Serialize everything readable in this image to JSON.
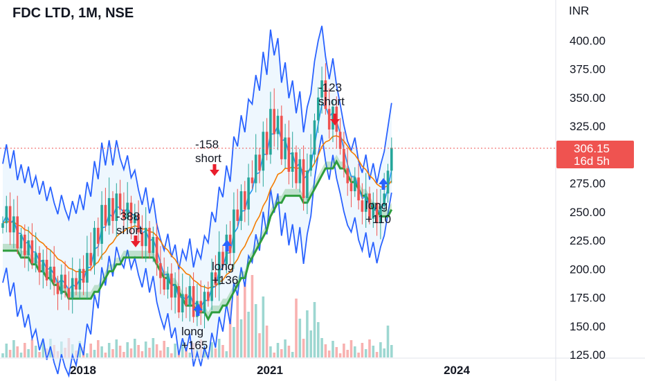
{
  "chart": {
    "title": "FDC LTD, 1M, NSE",
    "currency": "INR",
    "last_price": "306.15",
    "countdown": "16d 5h",
    "colors": {
      "up": "#26a69a",
      "down": "#ef5350",
      "bb_line": "#2962ff",
      "bb_fill": "#e3f2fd",
      "ema": "#f57c00",
      "fast_ma": "#2196f3",
      "cloud_up": "#2e9d3d",
      "cloud_down": "#e53935",
      "buy_arrow": "#2962ff",
      "sell_arrow": "#e91e2c",
      "price_tag": "#ef5350"
    }
  },
  "chart_data": {
    "type": "candlestick",
    "x_axis": {
      "tick_labels": [
        "2018",
        "2021",
        "2024"
      ]
    },
    "y_axis": {
      "ticks": [
        "125.00",
        "150.00",
        "175.00",
        "200.00",
        "225.00",
        "250.00",
        "275.00",
        "300.00",
        "325.00",
        "350.00",
        "375.00",
        "400.00"
      ],
      "ylim": [
        125,
        400
      ]
    },
    "grid": false,
    "annotations": [
      {
        "lines": [
          "-388",
          "short"
        ],
        "signal": "sell"
      },
      {
        "lines": [
          "long",
          "+165"
        ],
        "signal": "buy"
      },
      {
        "lines": [
          "-158",
          "short"
        ],
        "signal": "sell"
      },
      {
        "lines": [
          "long",
          "+136"
        ],
        "signal": "buy"
      },
      {
        "lines": [
          "-123",
          "short"
        ],
        "signal": "sell"
      },
      {
        "lines": [
          "long",
          "+110"
        ],
        "signal": "buy"
      }
    ]
  }
}
